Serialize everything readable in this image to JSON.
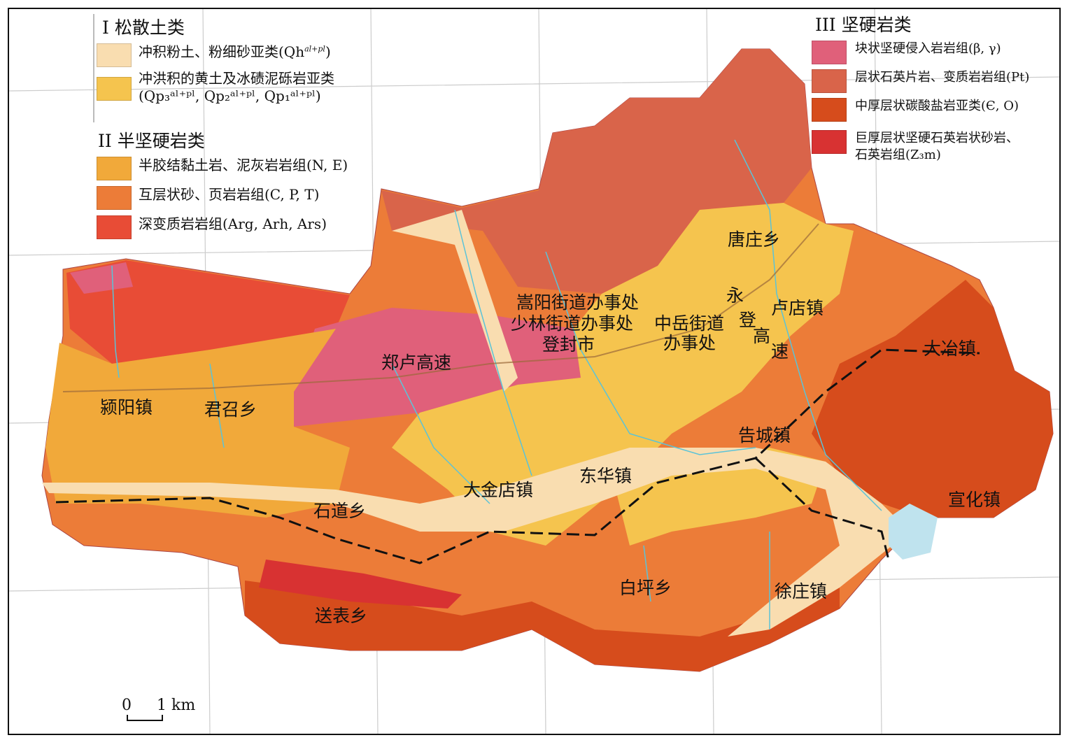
{
  "legend": {
    "group1": {
      "title": "I  松散土类",
      "items": [
        {
          "label": "冲积粉土、粉细砂亚类(Qh",
          "sup": "al+pl",
          "tail": ")",
          "color": "#f9ddb0"
        },
        {
          "label": "冲洪积的黄土及冰碛泥砾岩亚类",
          "label2": "(Qp₃ᵃˡ⁺ᵖˡ, Qp₂ᵃˡ⁺ᵖˡ, Qp₁ᵃˡ⁺ᵖˡ)",
          "color": "#f5c44e"
        }
      ]
    },
    "group2": {
      "title": "II  半坚硬岩类",
      "items": [
        {
          "label": "半胶结黏土岩、泥灰岩岩组(N, E)",
          "color": "#f1a93a"
        },
        {
          "label": "互层状砂、页岩岩组(C, P, T)",
          "color": "#ec7c38"
        },
        {
          "label": "深变质岩岩组(Arg, Arh, Ars)",
          "color": "#e84c36"
        }
      ]
    },
    "group3": {
      "title": "III  坚硬岩类",
      "items": [
        {
          "label": "块状坚硬侵入岩岩组(β, γ)",
          "color": "#e0607a"
        },
        {
          "label": "层状石英片岩、变质岩岩组(Pt)",
          "color": "#d9644a"
        },
        {
          "label": "中厚层状碳酸盐岩亚类(Є, O)",
          "color": "#d64c1c"
        },
        {
          "label": "巨厚层状坚硬石英岩状砂岩、",
          "label2": "石英岩组(Z₃m)",
          "color": "#d83232"
        }
      ]
    }
  },
  "places": {
    "tangzhuang": "唐庄乡",
    "songyang": "嵩阳街道办事处",
    "shaolin": "少林街道办事处",
    "zhongyue1": "中岳街道",
    "zhongyue2": "办事处",
    "dengfeng": "登封市",
    "yong": "永",
    "deng": "登",
    "gao": "高",
    "su": "速",
    "ludian": "卢店镇",
    "daye": "大冶镇",
    "zhenglu": "郑卢高速",
    "yingyang": "颍阳镇",
    "junzhao": "君召乡",
    "gaocheng": "告城镇",
    "donghua": "东华镇",
    "dajindian": "大金店镇",
    "shidao": "石道乡",
    "xuanhua": "宣化镇",
    "baiping": "白坪乡",
    "xuzhuang": "徐庄镇",
    "songbiao": "送表乡"
  },
  "scale": {
    "zero": "0",
    "one": "1 km"
  },
  "colors": {
    "water": "#bfe3ee",
    "river": "#5bc3d8",
    "road": "#9b6a3a",
    "boundary": "#111111"
  }
}
